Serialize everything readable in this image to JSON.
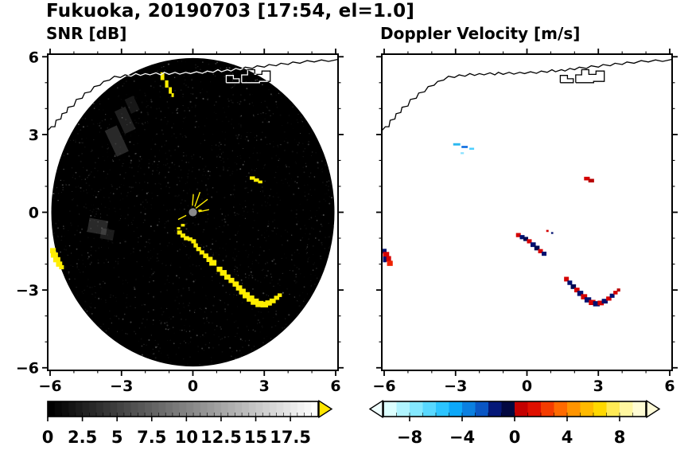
{
  "title": "Fukuoka, 20190703 [17:54, el=1.0]",
  "axes": {
    "range": [
      -6.1,
      6.1
    ],
    "majors": [
      -6,
      -3,
      0,
      3,
      6
    ],
    "labels": [
      "−6",
      "−3",
      "0",
      "3",
      "6"
    ],
    "minor_step": 1
  },
  "coastline": {
    "main": [
      [
        -6.1,
        3.15
      ],
      [
        -5.95,
        3.3
      ],
      [
        -5.8,
        3.3
      ],
      [
        -5.75,
        3.55
      ],
      [
        -5.55,
        3.6
      ],
      [
        -5.5,
        3.8
      ],
      [
        -5.3,
        3.85
      ],
      [
        -5.25,
        4.05
      ],
      [
        -5.0,
        4.1
      ],
      [
        -4.9,
        4.35
      ],
      [
        -4.65,
        4.4
      ],
      [
        -4.55,
        4.6
      ],
      [
        -4.3,
        4.65
      ],
      [
        -4.15,
        4.85
      ],
      [
        -3.9,
        4.9
      ],
      [
        -3.75,
        5.05
      ],
      [
        -3.5,
        5.1
      ],
      [
        -3.3,
        5.25
      ],
      [
        -3.05,
        5.2
      ],
      [
        -2.85,
        5.3
      ],
      [
        -2.6,
        5.25
      ],
      [
        -2.4,
        5.35
      ],
      [
        -2.2,
        5.28
      ],
      [
        -2.0,
        5.35
      ],
      [
        -1.8,
        5.3
      ],
      [
        -1.55,
        5.38
      ],
      [
        -1.35,
        5.3
      ],
      [
        -1.2,
        5.4
      ],
      [
        -1.0,
        5.32
      ],
      [
        -0.75,
        5.4
      ],
      [
        -0.55,
        5.33
      ],
      [
        -0.3,
        5.4
      ],
      [
        -0.1,
        5.35
      ],
      [
        0.15,
        5.42
      ],
      [
        0.4,
        5.36
      ],
      [
        0.6,
        5.45
      ],
      [
        0.85,
        5.4
      ],
      [
        1.05,
        5.5
      ],
      [
        1.2,
        5.42
      ],
      [
        1.45,
        5.5
      ],
      [
        1.6,
        5.45
      ],
      [
        1.8,
        5.55
      ],
      [
        2.0,
        5.5
      ],
      [
        2.2,
        5.6
      ],
      [
        2.5,
        5.55
      ],
      [
        2.7,
        5.65
      ],
      [
        3.0,
        5.6
      ],
      [
        3.2,
        5.7
      ],
      [
        3.5,
        5.65
      ],
      [
        3.7,
        5.75
      ],
      [
        4.0,
        5.7
      ],
      [
        4.2,
        5.8
      ],
      [
        4.5,
        5.75
      ],
      [
        4.8,
        5.85
      ],
      [
        5.1,
        5.8
      ],
      [
        5.4,
        5.88
      ],
      [
        5.7,
        5.82
      ],
      [
        6.1,
        5.9
      ]
    ],
    "islands": [
      [
        [
          1.4,
          5.0
        ],
        [
          1.4,
          5.28
        ],
        [
          1.7,
          5.28
        ],
        [
          1.7,
          5.15
        ],
        [
          1.95,
          5.15
        ],
        [
          1.95,
          5.0
        ],
        [
          1.4,
          5.0
        ]
      ],
      [
        [
          2.05,
          5.0
        ],
        [
          2.05,
          5.3
        ],
        [
          2.3,
          5.3
        ],
        [
          2.3,
          5.5
        ],
        [
          2.6,
          5.5
        ],
        [
          2.6,
          5.32
        ],
        [
          2.9,
          5.32
        ],
        [
          2.9,
          5.45
        ],
        [
          3.25,
          5.45
        ],
        [
          3.25,
          5.05
        ],
        [
          2.8,
          5.05
        ],
        [
          2.8,
          5.0
        ],
        [
          2.05,
          5.0
        ]
      ]
    ]
  },
  "chart_data": [
    {
      "id": "snr",
      "type": "radar_ppi",
      "title": "SNR [dB]",
      "bg": "#ffffff",
      "disk": {
        "cx": 0,
        "cy": 0,
        "r": 5.95,
        "color": "#000000"
      },
      "speckle": {
        "seed": 11,
        "count": 1700
      },
      "center_dot": {
        "r": 0.17,
        "color": "#8a8a8a"
      },
      "cell_color": "#ffee00",
      "coastline_over_disk": "#ffffff",
      "gray_patches": [
        [
          -3.2,
          2.75,
          0.55,
          1.1,
          0.22,
          -25
        ],
        [
          -2.85,
          3.55,
          0.5,
          0.95,
          0.17,
          -25
        ],
        [
          -2.55,
          4.15,
          0.4,
          0.6,
          0.12,
          -25
        ],
        [
          -4.0,
          -0.55,
          0.8,
          0.55,
          0.22,
          10
        ],
        [
          -3.6,
          -0.85,
          0.55,
          0.4,
          0.15,
          10
        ]
      ],
      "spokes": [
        [
          [
            0.12,
            0.15
          ],
          [
            0.62,
            0.5
          ]
        ],
        [
          [
            0.08,
            0.22
          ],
          [
            0.3,
            0.78
          ]
        ],
        [
          [
            -0.02,
            0.25
          ],
          [
            0.02,
            0.7
          ]
        ],
        [
          [
            0.25,
            0.02
          ],
          [
            0.68,
            0.1
          ]
        ],
        [
          [
            -0.28,
            -0.12
          ],
          [
            -0.62,
            -0.28
          ]
        ]
      ],
      "cells": [
        [
          -1.28,
          5.25,
          0.16,
          0.3
        ],
        [
          -1.1,
          4.95,
          0.14,
          0.28
        ],
        [
          -0.95,
          4.7,
          0.13,
          0.25
        ],
        [
          -0.85,
          4.52,
          0.1,
          0.15
        ],
        [
          2.5,
          1.32,
          0.22,
          0.13
        ],
        [
          2.67,
          1.24,
          0.22,
          0.13
        ],
        [
          2.83,
          1.17,
          0.18,
          0.11
        ],
        [
          -5.88,
          -1.48,
          0.24,
          0.2
        ],
        [
          -5.82,
          -1.65,
          0.3,
          0.2
        ],
        [
          -5.72,
          -1.83,
          0.3,
          0.2
        ],
        [
          -5.62,
          -2.0,
          0.26,
          0.2
        ],
        [
          -5.52,
          -2.12,
          0.2,
          0.16
        ],
        [
          -0.56,
          -0.78,
          0.2,
          0.16
        ],
        [
          -0.42,
          -0.9,
          0.2,
          0.16
        ],
        [
          -0.27,
          -1.0,
          0.22,
          0.16
        ],
        [
          -0.12,
          -1.04,
          0.2,
          0.14
        ],
        [
          0.03,
          -1.12,
          0.2,
          0.16
        ],
        [
          0.12,
          -1.28,
          0.18,
          0.16
        ],
        [
          0.24,
          -1.42,
          0.2,
          0.16
        ],
        [
          0.38,
          -1.55,
          0.2,
          0.16
        ],
        [
          0.54,
          -1.68,
          0.22,
          0.18
        ],
        [
          0.7,
          -1.82,
          0.26,
          0.2
        ],
        [
          0.84,
          -1.95,
          0.3,
          0.22
        ],
        [
          1.12,
          -2.2,
          0.24,
          0.2
        ],
        [
          1.28,
          -2.34,
          0.28,
          0.22
        ],
        [
          1.45,
          -2.5,
          0.26,
          0.2
        ],
        [
          1.62,
          -2.63,
          0.24,
          0.2
        ],
        [
          1.8,
          -2.77,
          0.26,
          0.2
        ],
        [
          1.94,
          -2.92,
          0.26,
          0.2
        ],
        [
          2.08,
          -3.06,
          0.28,
          0.22
        ],
        [
          2.24,
          -3.2,
          0.3,
          0.24
        ],
        [
          2.42,
          -3.33,
          0.32,
          0.24
        ],
        [
          2.6,
          -3.45,
          0.34,
          0.24
        ],
        [
          2.8,
          -3.54,
          0.34,
          0.24
        ],
        [
          3.0,
          -3.56,
          0.32,
          0.22
        ],
        [
          3.18,
          -3.5,
          0.28,
          0.2
        ],
        [
          3.35,
          -3.42,
          0.26,
          0.18
        ],
        [
          3.52,
          -3.3,
          0.22,
          0.16
        ],
        [
          3.65,
          -3.2,
          0.18,
          0.14
        ],
        [
          0.3,
          0.06,
          0.14,
          0.08
        ],
        [
          -0.42,
          -0.5,
          0.16,
          0.1
        ],
        [
          -0.6,
          -0.62,
          0.14,
          0.09
        ]
      ],
      "colorbar": {
        "min": 0,
        "max": 19.5,
        "step": 0.5,
        "type": "grayscale",
        "start_color": "#000000",
        "end_color": "#ffffff",
        "arrow_right_color": "#ffe600",
        "labels": [
          {
            "v": 0,
            "t": "0"
          },
          {
            "v": 2.5,
            "t": "2.5"
          },
          {
            "v": 5,
            "t": "5"
          },
          {
            "v": 7.5,
            "t": "7.5"
          },
          {
            "v": 10,
            "t": "10"
          },
          {
            "v": 12.5,
            "t": "12.5"
          },
          {
            "v": 15,
            "t": "15"
          },
          {
            "v": 17.5,
            "t": "17.5"
          }
        ]
      }
    },
    {
      "id": "velocity",
      "type": "radar_ppi",
      "title": "Doppler Velocity [m/s]",
      "bg": "#ffffff",
      "cells": [
        [
          -2.95,
          2.62,
          0.3,
          0.09,
          "#2ab8f0"
        ],
        [
          -2.62,
          2.52,
          0.26,
          0.08,
          "#0a6ce0"
        ],
        [
          -2.32,
          2.45,
          0.2,
          0.08,
          "#4fd0ff"
        ],
        [
          -2.72,
          2.28,
          0.14,
          0.07,
          "#8ae2ff"
        ],
        [
          2.52,
          1.3,
          0.24,
          0.14,
          "#d40000"
        ],
        [
          2.7,
          1.22,
          0.24,
          0.14,
          "#b80000"
        ],
        [
          -6.0,
          -1.5,
          0.2,
          0.18,
          "#001070"
        ],
        [
          -5.92,
          -1.64,
          0.26,
          0.22,
          "#d40000"
        ],
        [
          -5.84,
          -1.8,
          0.26,
          0.22,
          "#d40000"
        ],
        [
          -5.76,
          -1.97,
          0.24,
          0.2,
          "#ef2200"
        ],
        [
          -5.98,
          -1.82,
          0.14,
          0.22,
          "#001070"
        ],
        [
          -0.36,
          -0.88,
          0.2,
          0.16,
          "#d40000"
        ],
        [
          -0.2,
          -0.96,
          0.2,
          0.16,
          "#001070"
        ],
        [
          -0.05,
          -1.03,
          0.2,
          0.16,
          "#000a52"
        ],
        [
          0.1,
          -1.12,
          0.2,
          0.16,
          "#d40000"
        ],
        [
          0.26,
          -1.25,
          0.22,
          0.18,
          "#001070"
        ],
        [
          0.42,
          -1.38,
          0.22,
          0.18,
          "#000a52"
        ],
        [
          0.57,
          -1.5,
          0.2,
          0.16,
          "#d40000"
        ],
        [
          0.72,
          -1.6,
          0.2,
          0.16,
          "#001070"
        ],
        [
          0.86,
          -0.72,
          0.1,
          0.08,
          "#d40000"
        ],
        [
          1.06,
          -0.8,
          0.09,
          0.07,
          "#001070"
        ],
        [
          1.66,
          -2.58,
          0.2,
          0.18,
          "#d40000"
        ],
        [
          1.8,
          -2.72,
          0.2,
          0.17,
          "#001070"
        ],
        [
          1.95,
          -2.87,
          0.22,
          0.18,
          "#000a52"
        ],
        [
          2.1,
          -3.0,
          0.22,
          0.18,
          "#d40000"
        ],
        [
          2.24,
          -3.13,
          0.25,
          0.2,
          "#001070"
        ],
        [
          2.4,
          -3.26,
          0.26,
          0.2,
          "#d40000"
        ],
        [
          2.56,
          -3.38,
          0.28,
          0.2,
          "#001070"
        ],
        [
          2.74,
          -3.48,
          0.28,
          0.2,
          "#d40000"
        ],
        [
          2.92,
          -3.53,
          0.28,
          0.2,
          "#001070"
        ],
        [
          3.1,
          -3.5,
          0.26,
          0.18,
          "#d40000"
        ],
        [
          3.27,
          -3.43,
          0.25,
          0.18,
          "#001070"
        ],
        [
          3.44,
          -3.33,
          0.22,
          0.16,
          "#d40000"
        ],
        [
          3.58,
          -3.22,
          0.2,
          0.16,
          "#001070"
        ],
        [
          3.72,
          -3.1,
          0.18,
          0.14,
          "#d40000"
        ],
        [
          3.85,
          -3.0,
          0.14,
          0.12,
          "#b80000"
        ]
      ],
      "colorbar": {
        "min": -10,
        "max": 10,
        "step": 1,
        "colors": [
          "#dcffff",
          "#b0f4ff",
          "#84e8ff",
          "#58d8ff",
          "#2cc4ff",
          "#0da8f8",
          "#0b80e0",
          "#0a56c4",
          "#051878",
          "#020840",
          "#c40000",
          "#e01000",
          "#f43c00",
          "#ff6a00",
          "#ff9400",
          "#ffba00",
          "#ffd800",
          "#ffea55",
          "#fff6a0",
          "#fffcd4"
        ],
        "arrow_left_color": "#f0ffff",
        "arrow_right_color": "#fffbd8",
        "labels": [
          {
            "v": -8,
            "t": "−8"
          },
          {
            "v": -4,
            "t": "−4"
          },
          {
            "v": 0,
            "t": "0"
          },
          {
            "v": 4,
            "t": "4"
          },
          {
            "v": 8,
            "t": "8"
          }
        ]
      }
    }
  ]
}
